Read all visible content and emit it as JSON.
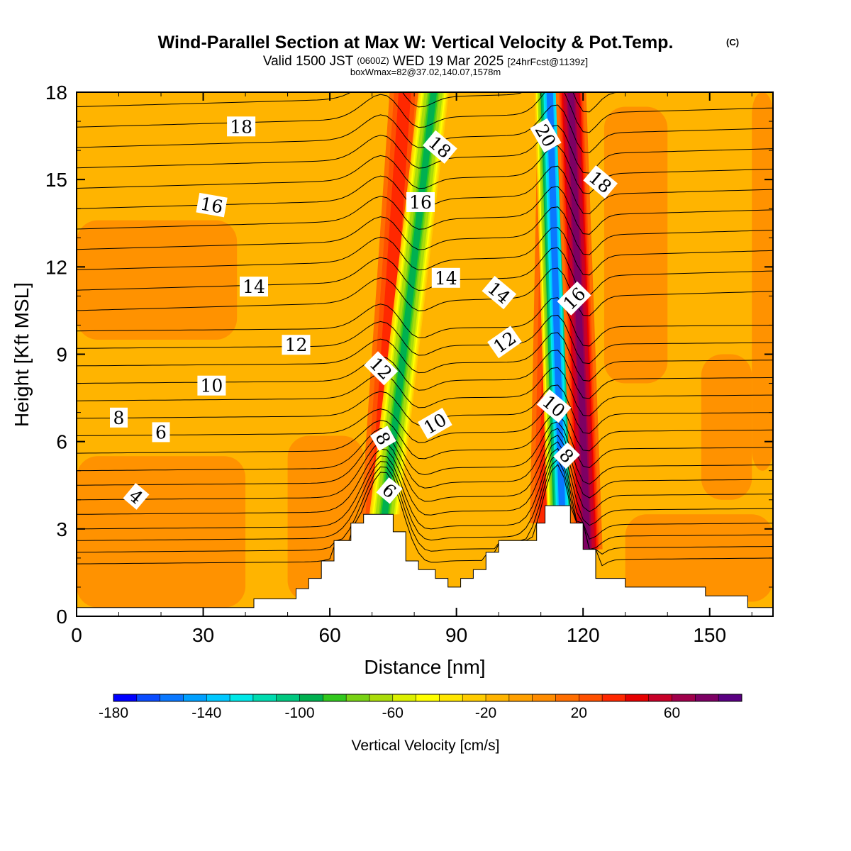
{
  "chart_data": {
    "type": "heatmap",
    "title": "Wind-Parallel Section at Max W: Vertical Velocity & Pot.Temp.",
    "title_mark": "(C)",
    "subtitle_main": "Valid 1500 JST",
    "subtitle_zulu": "(0600Z)",
    "subtitle_date": "WED 19 Mar 2025",
    "subtitle_fcst": "[24hrFcst@1139z]",
    "subtitle_box": "boxWmax=82@37.02,140.07,1578m",
    "xlabel": "Distance [nm]",
    "ylabel": "Height [Kft MSL]",
    "xlim": [
      0,
      165
    ],
    "ylim": [
      0,
      18
    ],
    "xticks": [
      "0",
      "30",
      "60",
      "90",
      "120",
      "150"
    ],
    "yticks": [
      "0",
      "3",
      "6",
      "9",
      "12",
      "15",
      "18"
    ],
    "colorbar": {
      "label": "Vertical Velocity [cm/s]",
      "ticks": [
        "-180",
        "-140",
        "-100",
        "-60",
        "-20",
        "20",
        "60"
      ],
      "colors": [
        "#0000ff",
        "#0a4cff",
        "#0a78ff",
        "#00a0ff",
        "#00c8ff",
        "#00e8e8",
        "#00dcb0",
        "#00c880",
        "#00b050",
        "#32c81e",
        "#78d214",
        "#aadc0a",
        "#dcf000",
        "#ffff00",
        "#ffe600",
        "#ffcc00",
        "#ffb400",
        "#ffa000",
        "#ff8c00",
        "#ff6e00",
        "#ff5000",
        "#ff2800",
        "#e60000",
        "#c80028",
        "#a0004b",
        "#7d0064",
        "#5a0082"
      ]
    },
    "background_wind_speed_level": 0,
    "w_bands": [
      {
        "name": "updraft-band-1",
        "bottom_x": 71,
        "top_x": 78,
        "peak_w": 40
      },
      {
        "name": "downdraft-band-1",
        "bottom_x": 73,
        "top_x": 85,
        "peak_w": -100
      },
      {
        "name": "updraft-band-2",
        "bottom_x": 111,
        "top_x": 113,
        "peak_w": 40
      },
      {
        "name": "downdraft-band-2",
        "bottom_x": 115,
        "top_x": 112,
        "peak_w": -170
      },
      {
        "name": "updraft-band-3",
        "bottom_x": 121,
        "top_x": 117,
        "peak_w": 82
      }
    ],
    "theta_isentrope_heights": [
      1.8,
      2.2,
      2.6,
      3.0,
      3.5,
      4.0,
      4.5,
      5.0,
      5.6,
      6.2,
      6.8,
      7.4,
      8.0,
      8.6,
      9.2,
      9.8,
      10.5,
      11.2,
      11.9,
      12.6,
      13.3,
      14.0,
      14.7,
      15.4,
      16.1,
      16.8,
      17.5
    ],
    "theta_labels": [
      {
        "text": "4",
        "x": 14,
        "y": 4.1,
        "rot": 40
      },
      {
        "text": "6",
        "x": 20,
        "y": 6.3,
        "rot": 0
      },
      {
        "text": "8",
        "x": 10,
        "y": 6.8,
        "rot": 0
      },
      {
        "text": "10",
        "x": 32,
        "y": 7.9,
        "rot": 0
      },
      {
        "text": "12",
        "x": 52,
        "y": 9.3,
        "rot": 0
      },
      {
        "text": "14",
        "x": 42,
        "y": 11.3,
        "rot": 0
      },
      {
        "text": "16",
        "x": 32,
        "y": 14.1,
        "rot": 10
      },
      {
        "text": "18",
        "x": 39,
        "y": 16.8,
        "rot": 0
      },
      {
        "text": "6",
        "x": 74,
        "y": 4.3,
        "rot": 40
      },
      {
        "text": "8",
        "x": 72.5,
        "y": 6.1,
        "rot": 60
      },
      {
        "text": "12",
        "x": 72,
        "y": 8.5,
        "rot": 45
      },
      {
        "text": "10",
        "x": 85,
        "y": 6.6,
        "rot": -30
      },
      {
        "text": "16",
        "x": 81.5,
        "y": 14.2,
        "rot": 0
      },
      {
        "text": "18",
        "x": 86,
        "y": 16.1,
        "rot": 40
      },
      {
        "text": "14",
        "x": 87.5,
        "y": 11.6,
        "rot": 0
      },
      {
        "text": "14",
        "x": 100,
        "y": 11.1,
        "rot": 40
      },
      {
        "text": "12",
        "x": 101.5,
        "y": 9.4,
        "rot": -35
      },
      {
        "text": "20",
        "x": 111,
        "y": 16.5,
        "rot": 60
      },
      {
        "text": "18",
        "x": 124,
        "y": 14.9,
        "rot": 40
      },
      {
        "text": "16",
        "x": 118,
        "y": 10.9,
        "rot": -45
      },
      {
        "text": "10",
        "x": 113,
        "y": 7.2,
        "rot": 40
      },
      {
        "text": "8",
        "x": 116,
        "y": 5.5,
        "rot": 45
      }
    ],
    "terrain": [
      [
        0,
        0.3
      ],
      [
        42,
        0.3
      ],
      [
        42,
        0.6
      ],
      [
        52,
        0.6
      ],
      [
        52,
        0.95
      ],
      [
        55,
        0.95
      ],
      [
        55,
        1.3
      ],
      [
        58,
        1.3
      ],
      [
        58,
        1.9
      ],
      [
        61,
        1.9
      ],
      [
        61,
        2.6
      ],
      [
        65,
        2.6
      ],
      [
        65,
        3.2
      ],
      [
        68,
        3.2
      ],
      [
        68,
        3.5
      ],
      [
        75,
        3.5
      ],
      [
        75,
        2.9
      ],
      [
        78,
        2.9
      ],
      [
        78,
        1.9
      ],
      [
        81,
        1.9
      ],
      [
        81,
        1.6
      ],
      [
        85,
        1.6
      ],
      [
        85,
        1.3
      ],
      [
        88,
        1.3
      ],
      [
        88,
        1.0
      ],
      [
        91,
        1.0
      ],
      [
        91,
        1.3
      ],
      [
        94,
        1.3
      ],
      [
        94,
        1.6
      ],
      [
        97,
        1.6
      ],
      [
        97,
        2.2
      ],
      [
        100,
        2.2
      ],
      [
        100,
        2.6
      ],
      [
        109,
        2.6
      ],
      [
        109,
        3.2
      ],
      [
        111,
        3.2
      ],
      [
        111,
        3.8
      ],
      [
        117,
        3.8
      ],
      [
        117,
        3.2
      ],
      [
        120,
        3.2
      ],
      [
        120,
        2.3
      ],
      [
        123,
        2.3
      ],
      [
        123,
        1.3
      ],
      [
        130,
        1.3
      ],
      [
        130,
        1.0
      ],
      [
        149,
        1.0
      ],
      [
        149,
        0.7
      ],
      [
        159,
        0.7
      ],
      [
        159,
        0.3
      ],
      [
        165,
        0.3
      ],
      [
        165,
        0
      ],
      [
        0,
        0
      ]
    ]
  }
}
